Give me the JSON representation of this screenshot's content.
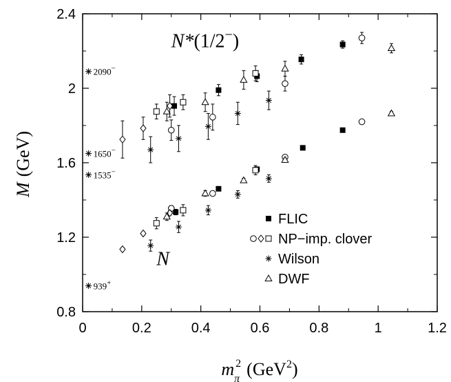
{
  "chart_data": {
    "type": "scatter",
    "xlabel": {
      "base": "m",
      "subscript": "π",
      "superscript": "2",
      "unit_pre": "(GeV",
      "unit_sup": "2",
      "unit_post": ")"
    },
    "ylabel": {
      "symbol": "M",
      "unit": "(GeV)"
    },
    "xlim": [
      0,
      1.2
    ],
    "ylim": [
      0.8,
      2.4
    ],
    "x_ticks": [
      "0",
      "0.2",
      "0.4",
      "0.6",
      "0.8",
      "1",
      "1.2"
    ],
    "y_ticks": [
      "0.8",
      "1.2",
      "1.6",
      "2",
      "2.4"
    ],
    "grid": false,
    "annotations": [
      {
        "key": "nstar",
        "text": "N*(1/2",
        "sup": "−",
        "close": ")",
        "x": 0.3,
        "y": 2.22
      },
      {
        "key": "n",
        "text": "N",
        "x": 0.25,
        "y": 1.05
      }
    ],
    "experimental": [
      {
        "label": "2090",
        "sign": "−",
        "x": 0.02,
        "y": 2.09
      },
      {
        "label": "1650",
        "sign": "−",
        "x": 0.02,
        "y": 1.65
      },
      {
        "label": "1535",
        "sign": "−",
        "x": 0.02,
        "y": 1.535
      },
      {
        "label": "939",
        "sign": "+",
        "x": 0.02,
        "y": 0.939
      }
    ],
    "legend": {
      "position": "bottom-right",
      "entries": [
        {
          "label": "FLIC",
          "markers": [
            "filled-square"
          ]
        },
        {
          "label": "NP−imp. clover",
          "markers": [
            "open-circle",
            "open-diamond",
            "open-square"
          ]
        },
        {
          "label": "Wilson",
          "markers": [
            "asterisk"
          ]
        },
        {
          "label": "DWF",
          "markers": [
            "open-triangle"
          ]
        }
      ]
    },
    "series": [
      {
        "name": "FLIC",
        "marker": "filled-square",
        "points": [
          {
            "x": 0.31,
            "y": 1.905,
            "err": 0.05
          },
          {
            "x": 0.46,
            "y": 1.99,
            "err": 0.03
          },
          {
            "x": 0.59,
            "y": 2.065,
            "err": 0.03
          },
          {
            "x": 0.74,
            "y": 2.155,
            "err": 0.025
          },
          {
            "x": 0.88,
            "y": 2.235,
            "err": 0.02
          },
          {
            "x": 0.315,
            "y": 1.335,
            "err": 0.015
          },
          {
            "x": 0.46,
            "y": 1.46,
            "err": 0.01
          },
          {
            "x": 0.59,
            "y": 1.565,
            "err": 0.01
          },
          {
            "x": 0.745,
            "y": 1.68,
            "err": 0.008
          },
          {
            "x": 0.88,
            "y": 1.775,
            "err": 0.006
          }
        ]
      },
      {
        "name": "NP−imp. clover (circle)",
        "marker": "open-circle",
        "points": [
          {
            "x": 0.3,
            "y": 1.775,
            "err": 0.055
          },
          {
            "x": 0.44,
            "y": 1.845,
            "err": 0.07
          },
          {
            "x": 0.685,
            "y": 2.025,
            "err": 0.04
          },
          {
            "x": 0.945,
            "y": 2.27,
            "err": 0.03
          },
          {
            "x": 0.3,
            "y": 1.355,
            "err": 0.015
          },
          {
            "x": 0.44,
            "y": 1.435,
            "err": 0.01
          },
          {
            "x": 0.685,
            "y": 1.63,
            "err": 0.01
          },
          {
            "x": 0.945,
            "y": 1.82,
            "err": 0.008
          }
        ]
      },
      {
        "name": "NP−imp. clover (diamond)",
        "marker": "open-diamond",
        "points": [
          {
            "x": 0.135,
            "y": 1.725,
            "err": 0.1
          },
          {
            "x": 0.205,
            "y": 1.785,
            "err": 0.06
          },
          {
            "x": 0.295,
            "y": 1.905,
            "err": 0.06
          },
          {
            "x": 0.135,
            "y": 1.135,
            "err": 0.01
          },
          {
            "x": 0.205,
            "y": 1.22,
            "err": 0.01
          },
          {
            "x": 0.295,
            "y": 1.33,
            "err": 0.012
          }
        ]
      },
      {
        "name": "NP−imp. clover (square)",
        "marker": "open-square",
        "points": [
          {
            "x": 0.25,
            "y": 1.875,
            "err": 0.04
          },
          {
            "x": 0.34,
            "y": 1.925,
            "err": 0.04
          },
          {
            "x": 0.585,
            "y": 2.08,
            "err": 0.04
          },
          {
            "x": 0.25,
            "y": 1.275,
            "err": 0.03
          },
          {
            "x": 0.34,
            "y": 1.345,
            "err": 0.03
          },
          {
            "x": 0.585,
            "y": 1.56,
            "err": 0.025
          }
        ]
      },
      {
        "name": "Wilson",
        "marker": "asterisk",
        "points": [
          {
            "x": 0.23,
            "y": 1.67,
            "err": 0.07
          },
          {
            "x": 0.325,
            "y": 1.73,
            "err": 0.07
          },
          {
            "x": 0.425,
            "y": 1.795,
            "err": 0.07
          },
          {
            "x": 0.525,
            "y": 1.865,
            "err": 0.06
          },
          {
            "x": 0.63,
            "y": 1.935,
            "err": 0.05
          },
          {
            "x": 0.23,
            "y": 1.155,
            "err": 0.03
          },
          {
            "x": 0.325,
            "y": 1.255,
            "err": 0.03
          },
          {
            "x": 0.425,
            "y": 1.345,
            "err": 0.025
          },
          {
            "x": 0.525,
            "y": 1.43,
            "err": 0.02
          },
          {
            "x": 0.63,
            "y": 1.515,
            "err": 0.02
          }
        ]
      },
      {
        "name": "DWF",
        "marker": "open-triangle",
        "points": [
          {
            "x": 0.285,
            "y": 1.875,
            "err": 0.05
          },
          {
            "x": 0.415,
            "y": 1.925,
            "err": 0.05
          },
          {
            "x": 0.545,
            "y": 2.045,
            "err": 0.05
          },
          {
            "x": 0.685,
            "y": 2.105,
            "err": 0.04
          },
          {
            "x": 1.045,
            "y": 2.215,
            "err": 0.025
          },
          {
            "x": 0.285,
            "y": 1.31,
            "err": 0.02
          },
          {
            "x": 0.415,
            "y": 1.435,
            "err": 0.015
          },
          {
            "x": 0.545,
            "y": 1.505,
            "err": 0.012
          },
          {
            "x": 0.685,
            "y": 1.615,
            "err": 0.01
          },
          {
            "x": 1.045,
            "y": 1.865,
            "err": 0.01
          }
        ]
      }
    ]
  }
}
